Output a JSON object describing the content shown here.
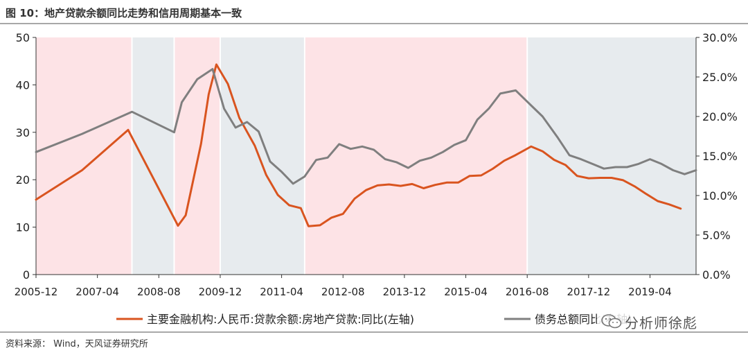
{
  "figure": {
    "title": "图 10：地产贷款余额同比走势和信用周期基本一致",
    "source": "资料来源：  Wind，天风证券研究所",
    "watermark": "分析师徐彪"
  },
  "colors": {
    "pink_band": "#fde3e6",
    "grey_band": "#e7ebee",
    "orange_series": "#d9541f",
    "grey_series": "#7f7f7f",
    "axis": "#333333",
    "rule": "#a8a8a8"
  },
  "chart_data": {
    "type": "line",
    "title": "",
    "x_tick_labels": [
      "2005-12",
      "2007-04",
      "2008-08",
      "2009-12",
      "2011-04",
      "2012-08",
      "2013-12",
      "2015-04",
      "2016-08",
      "2017-12",
      "2019-04"
    ],
    "xlim": [
      "2005-12",
      "2020-04"
    ],
    "y_left": {
      "ylim": [
        0,
        50
      ],
      "ticks": [
        "0",
        "10",
        "20",
        "30",
        "40",
        "50"
      ]
    },
    "y_right": {
      "ylim": [
        0,
        30
      ],
      "ticks": [
        "0.0%",
        "5.0%",
        "10.0%",
        "15.0%",
        "20.0%",
        "25.0%",
        "30.0%"
      ]
    },
    "grid": false,
    "legend_position": "bottom",
    "background_bands": [
      {
        "start": "2005-12",
        "end": "2008-01",
        "phase": "pink"
      },
      {
        "start": "2008-01",
        "end": "2008-12",
        "phase": "grey"
      },
      {
        "start": "2008-12",
        "end": "2009-12",
        "phase": "pink"
      },
      {
        "start": "2009-12",
        "end": "2011-10",
        "phase": "grey"
      },
      {
        "start": "2011-10",
        "end": "2016-08",
        "phase": "pink"
      },
      {
        "start": "2016-08",
        "end": "2020-04",
        "phase": "grey"
      }
    ],
    "series": [
      {
        "name": "主要金融机构:人民币:贷款余额:房地产贷款:同比(左轴)",
        "axis": "left",
        "color": "#d9541f",
        "points": [
          [
            "2005-12",
            15.8
          ],
          [
            "2006-12",
            22.0
          ],
          [
            "2007-12",
            30.5
          ],
          [
            "2009-01",
            10.3
          ],
          [
            "2009-03",
            12.5
          ],
          [
            "2009-07",
            27.6
          ],
          [
            "2009-09",
            38.0
          ],
          [
            "2009-11",
            44.3
          ],
          [
            "2010-02",
            40.2
          ],
          [
            "2010-05",
            33.0
          ],
          [
            "2010-09",
            27.2
          ],
          [
            "2010-12",
            21.0
          ],
          [
            "2011-03",
            16.8
          ],
          [
            "2011-06",
            14.6
          ],
          [
            "2011-09",
            14.0
          ],
          [
            "2011-11",
            10.2
          ],
          [
            "2012-02",
            10.4
          ],
          [
            "2012-05",
            12.0
          ],
          [
            "2012-08",
            12.8
          ],
          [
            "2012-11",
            16.0
          ],
          [
            "2013-02",
            17.8
          ],
          [
            "2013-05",
            18.8
          ],
          [
            "2013-08",
            19.0
          ],
          [
            "2013-11",
            18.7
          ],
          [
            "2014-02",
            19.1
          ],
          [
            "2014-05",
            18.2
          ],
          [
            "2014-08",
            18.9
          ],
          [
            "2014-11",
            19.4
          ],
          [
            "2015-02",
            19.4
          ],
          [
            "2015-05",
            20.8
          ],
          [
            "2015-08",
            20.9
          ],
          [
            "2015-11",
            22.3
          ],
          [
            "2016-02",
            24.0
          ],
          [
            "2016-05",
            25.2
          ],
          [
            "2016-09",
            27.0
          ],
          [
            "2016-12",
            26.0
          ],
          [
            "2017-03",
            24.2
          ],
          [
            "2017-06",
            23.1
          ],
          [
            "2017-09",
            20.8
          ],
          [
            "2017-12",
            20.3
          ],
          [
            "2018-03",
            20.4
          ],
          [
            "2018-06",
            20.4
          ],
          [
            "2018-09",
            19.9
          ],
          [
            "2018-12",
            18.6
          ],
          [
            "2019-03",
            17.0
          ],
          [
            "2019-06",
            15.5
          ],
          [
            "2019-09",
            14.8
          ],
          [
            "2019-12",
            13.9
          ]
        ]
      },
      {
        "name": "债务总额同比(右轴)",
        "axis": "right",
        "color": "#7f7f7f",
        "points": [
          [
            "2005-12",
            15.5
          ],
          [
            "2006-12",
            17.8
          ],
          [
            "2008-01",
            20.6
          ],
          [
            "2008-12",
            18.0
          ],
          [
            "2009-02",
            21.8
          ],
          [
            "2009-06",
            24.7
          ],
          [
            "2009-10",
            26.0
          ],
          [
            "2010-01",
            21.0
          ],
          [
            "2010-04",
            18.6
          ],
          [
            "2010-07",
            19.3
          ],
          [
            "2010-10",
            18.1
          ],
          [
            "2011-01",
            14.3
          ],
          [
            "2011-04",
            13.0
          ],
          [
            "2011-07",
            11.5
          ],
          [
            "2011-10",
            12.4
          ],
          [
            "2012-01",
            14.5
          ],
          [
            "2012-04",
            14.8
          ],
          [
            "2012-07",
            16.5
          ],
          [
            "2012-10",
            15.9
          ],
          [
            "2013-01",
            16.2
          ],
          [
            "2013-04",
            15.8
          ],
          [
            "2013-07",
            14.6
          ],
          [
            "2013-10",
            14.2
          ],
          [
            "2014-01",
            13.5
          ],
          [
            "2014-04",
            14.4
          ],
          [
            "2014-07",
            14.8
          ],
          [
            "2014-10",
            15.5
          ],
          [
            "2015-01",
            16.4
          ],
          [
            "2015-04",
            17.0
          ],
          [
            "2015-07",
            19.6
          ],
          [
            "2015-10",
            21.0
          ],
          [
            "2016-01",
            22.9
          ],
          [
            "2016-05",
            23.3
          ],
          [
            "2016-09",
            21.4
          ],
          [
            "2016-12",
            20.0
          ],
          [
            "2017-04",
            17.3
          ],
          [
            "2017-07",
            15.1
          ],
          [
            "2017-10",
            14.6
          ],
          [
            "2018-01",
            14.0
          ],
          [
            "2018-04",
            13.4
          ],
          [
            "2018-07",
            13.6
          ],
          [
            "2018-10",
            13.6
          ],
          [
            "2019-01",
            14.0
          ],
          [
            "2019-04",
            14.6
          ],
          [
            "2019-07",
            14.0
          ],
          [
            "2019-10",
            13.2
          ],
          [
            "2020-01",
            12.7
          ],
          [
            "2020-04",
            13.2
          ]
        ]
      }
    ]
  }
}
